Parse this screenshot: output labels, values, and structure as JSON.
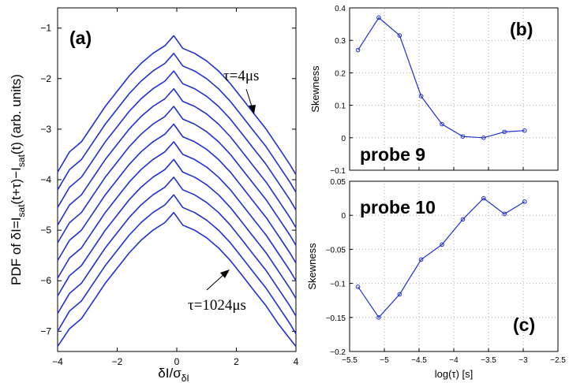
{
  "chart_data": [
    {
      "panel": "(a)",
      "type": "line",
      "ylabel": "PDF of δI=I_sat(t+τ)−I_sat(t) (arb. units)",
      "ylabel_parts": [
        "PDF of δI=I",
        "sat",
        "(t+τ)−I",
        "sat",
        "(t) (arb. units)"
      ],
      "xlabel_parts": [
        "δI/σ",
        "δI"
      ],
      "xlim": [
        -4,
        4
      ],
      "ylim": [
        -7.4,
        -0.6
      ],
      "xticks": [
        -4,
        -2,
        0,
        2,
        4
      ],
      "xtick_labels": [
        "−4",
        "−2",
        "0",
        "2",
        "4"
      ],
      "yticks": [
        -7,
        -6,
        -5,
        -4,
        -3,
        -2,
        -1
      ],
      "ytick_labels": [
        "−7",
        "−6",
        "−5",
        "−4",
        "−3",
        "−2",
        "−1"
      ],
      "color": "#2030d0",
      "annotations": [
        "τ=4μs",
        "τ=1024μs"
      ],
      "x": [
        -4.0,
        -3.6,
        -3.2,
        -2.8,
        -2.4,
        -2.0,
        -1.6,
        -1.2,
        -0.8,
        -0.4,
        -0.1,
        0.2,
        0.6,
        1.0,
        1.4,
        1.8,
        2.2,
        2.6,
        3.0,
        3.4,
        3.8,
        4.0
      ],
      "series": [
        {
          "values": [
            -3.85,
            -3.45,
            -3.25,
            -2.9,
            -2.55,
            -2.25,
            -1.95,
            -1.7,
            -1.5,
            -1.35,
            -1.15,
            -1.4,
            -1.5,
            -1.65,
            -1.85,
            -2.1,
            -2.4,
            -2.7,
            -3.0,
            -3.35,
            -3.7,
            -3.9
          ]
        },
        {
          "values": [
            -4.2,
            -3.8,
            -3.6,
            -3.25,
            -2.9,
            -2.6,
            -2.3,
            -2.05,
            -1.85,
            -1.7,
            -1.5,
            -1.75,
            -1.85,
            -2.0,
            -2.2,
            -2.45,
            -2.75,
            -3.05,
            -3.35,
            -3.7,
            -4.05,
            -4.25
          ]
        },
        {
          "values": [
            -4.55,
            -4.15,
            -3.95,
            -3.6,
            -3.25,
            -2.95,
            -2.65,
            -2.4,
            -2.2,
            -2.05,
            -1.85,
            -2.1,
            -2.2,
            -2.35,
            -2.55,
            -2.8,
            -3.1,
            -3.4,
            -3.7,
            -4.05,
            -4.4,
            -4.6
          ]
        },
        {
          "values": [
            -4.9,
            -4.5,
            -4.3,
            -3.95,
            -3.6,
            -3.3,
            -3.0,
            -2.75,
            -2.55,
            -2.4,
            -2.2,
            -2.45,
            -2.55,
            -2.7,
            -2.9,
            -3.15,
            -3.45,
            -3.75,
            -4.05,
            -4.4,
            -4.75,
            -4.95
          ]
        },
        {
          "values": [
            -5.25,
            -4.85,
            -4.65,
            -4.3,
            -3.95,
            -3.65,
            -3.35,
            -3.1,
            -2.9,
            -2.75,
            -2.55,
            -2.8,
            -2.9,
            -3.05,
            -3.25,
            -3.5,
            -3.8,
            -4.1,
            -4.4,
            -4.75,
            -5.1,
            -5.3
          ]
        },
        {
          "values": [
            -5.6,
            -5.2,
            -5.0,
            -4.65,
            -4.3,
            -4.0,
            -3.7,
            -3.45,
            -3.25,
            -3.1,
            -2.9,
            -3.15,
            -3.25,
            -3.4,
            -3.6,
            -3.85,
            -4.15,
            -4.45,
            -4.75,
            -5.1,
            -5.45,
            -5.65
          ]
        },
        {
          "values": [
            -5.95,
            -5.55,
            -5.35,
            -5.0,
            -4.65,
            -4.35,
            -4.05,
            -3.8,
            -3.6,
            -3.45,
            -3.25,
            -3.5,
            -3.6,
            -3.75,
            -3.95,
            -4.2,
            -4.5,
            -4.8,
            -5.1,
            -5.45,
            -5.8,
            -6.0
          ]
        },
        {
          "values": [
            -6.3,
            -5.9,
            -5.7,
            -5.35,
            -5.0,
            -4.7,
            -4.4,
            -4.15,
            -3.95,
            -3.8,
            -3.6,
            -3.85,
            -3.95,
            -4.1,
            -4.3,
            -4.55,
            -4.85,
            -5.15,
            -5.45,
            -5.8,
            -6.15,
            -6.35
          ]
        },
        {
          "values": [
            -6.65,
            -6.25,
            -6.05,
            -5.7,
            -5.35,
            -5.05,
            -4.75,
            -4.5,
            -4.3,
            -4.15,
            -3.95,
            -4.2,
            -4.3,
            -4.45,
            -4.65,
            -4.9,
            -5.2,
            -5.5,
            -5.8,
            -6.15,
            -6.5,
            -6.7
          ]
        },
        {
          "values": [
            -7.0,
            -6.6,
            -6.4,
            -6.05,
            -5.7,
            -5.4,
            -5.1,
            -4.85,
            -4.65,
            -4.5,
            -4.3,
            -4.55,
            -4.65,
            -4.8,
            -5.0,
            -5.25,
            -5.55,
            -5.85,
            -6.15,
            -6.5,
            -6.85,
            -7.05
          ]
        },
        {
          "values": [
            -7.3,
            -6.95,
            -6.75,
            -6.4,
            -6.05,
            -5.75,
            -5.45,
            -5.2,
            -5.0,
            -4.85,
            -4.65,
            -4.9,
            -5.0,
            -5.15,
            -5.35,
            -5.6,
            -5.9,
            -6.2,
            -6.5,
            -6.85,
            -7.15,
            -7.3
          ]
        }
      ]
    },
    {
      "panel": "(b)",
      "type": "line",
      "annotation": "probe 9",
      "ylabel": "Skewness",
      "xlim": [
        -5.5,
        -2.5
      ],
      "ylim": [
        -0.1,
        0.4
      ],
      "yticks": [
        -0.1,
        0,
        0.1,
        0.2,
        0.3,
        0.4
      ],
      "ytick_labels": [
        "−0.1",
        "0",
        "0.1",
        "0.2",
        "0.3",
        "0.4"
      ],
      "xticks": [
        -5.5,
        -5,
        -4.5,
        -4,
        -3.5,
        -3,
        -2.5
      ],
      "grid": true,
      "color": "#2030d0",
      "x": [
        -5.38,
        -5.08,
        -4.78,
        -4.47,
        -4.17,
        -3.87,
        -3.57,
        -3.27,
        -2.98
      ],
      "values": [
        0.27,
        0.37,
        0.315,
        0.128,
        0.042,
        0.004,
        0.0,
        0.018,
        0.022
      ]
    },
    {
      "panel": "(c)",
      "type": "line",
      "annotation": "probe 10",
      "ylabel": "Skewness",
      "xlabel": "log(τ) [s]",
      "xlim": [
        -5.5,
        -2.5
      ],
      "ylim": [
        -0.2,
        0.05
      ],
      "yticks": [
        -0.2,
        -0.15,
        -0.1,
        -0.05,
        0,
        0.05
      ],
      "ytick_labels": [
        "−0.2",
        "−0.15",
        "−0.1",
        "−0.05",
        "0",
        "0.05"
      ],
      "xticks": [
        -5.5,
        -5,
        -4.5,
        -4,
        -3.5,
        -3,
        -2.5
      ],
      "xtick_labels": [
        "−5.5",
        "−5",
        "−4.5",
        "−4",
        "−3.5",
        "−3",
        "−2.5"
      ],
      "grid": true,
      "color": "#2030d0",
      "x": [
        -5.38,
        -5.08,
        -4.78,
        -4.47,
        -4.17,
        -3.87,
        -3.57,
        -3.27,
        -2.98
      ],
      "values": [
        -0.105,
        -0.15,
        -0.116,
        -0.065,
        -0.043,
        -0.006,
        0.025,
        0.002,
        0.02
      ]
    }
  ]
}
